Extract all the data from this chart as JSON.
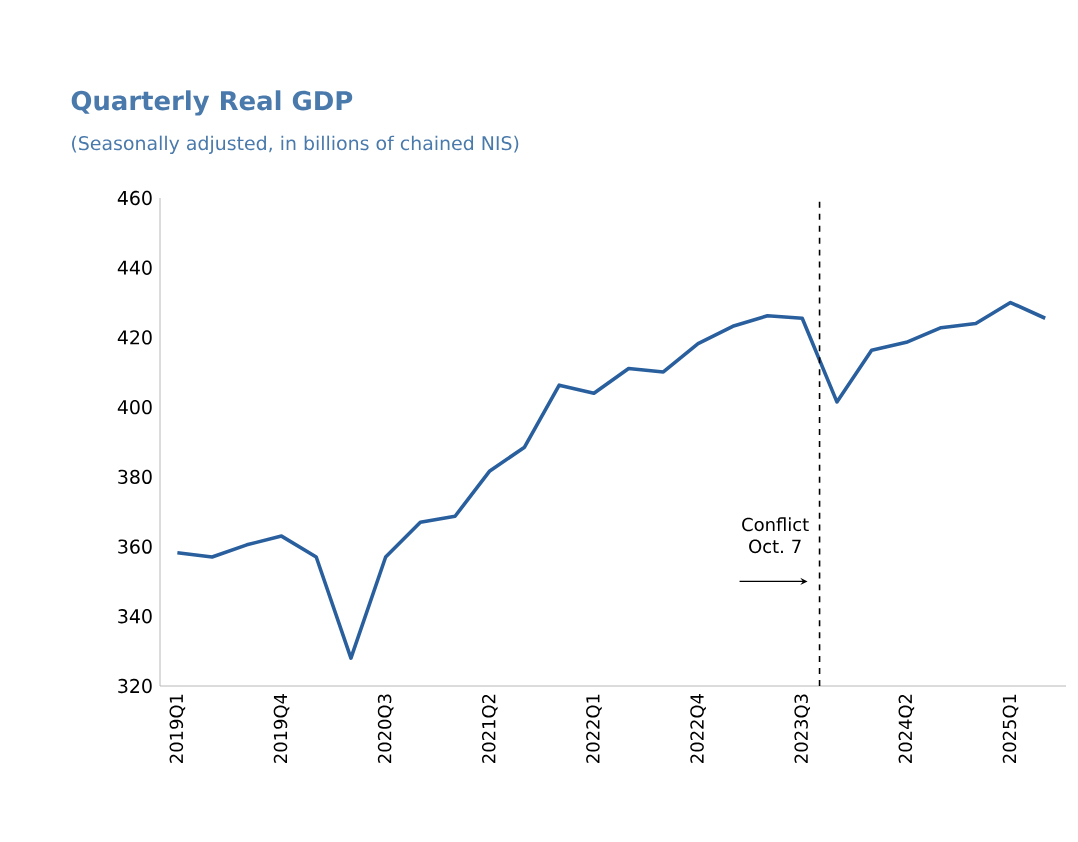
{
  "chart_data": {
    "type": "line",
    "title": "Quarterly Real GDP",
    "subtitle": "(Seasonally adjusted, in billions of chained NIS)",
    "categories": [
      "2019Q1",
      null,
      null,
      "2019Q4",
      null,
      null,
      "2020Q3",
      null,
      null,
      "2021Q2",
      null,
      null,
      "2022Q1",
      null,
      null,
      "2022Q4",
      null,
      null,
      "2023Q3",
      null,
      null,
      "2024Q2",
      null,
      null,
      "2025Q1",
      null
    ],
    "series": [
      {
        "color": "#2a5f9e",
        "values": [
          358.2,
          357,
          360.5,
          363,
          357,
          328,
          357,
          367,
          368.7,
          381.7,
          388.5,
          406.3,
          404,
          411.1,
          410.1,
          418.2,
          423.2,
          426.2,
          425.5,
          401.5,
          416.3,
          418.6,
          422.8,
          424,
          430,
          425.5
        ]
      }
    ],
    "ylim": [
      320,
      460
    ],
    "yticks": [
      320,
      340,
      360,
      380,
      400,
      420,
      440,
      460
    ],
    "grid": false,
    "marker": "none",
    "line_style": "solid",
    "annotations": [
      "Conflict Oct. 7"
    ]
  }
}
